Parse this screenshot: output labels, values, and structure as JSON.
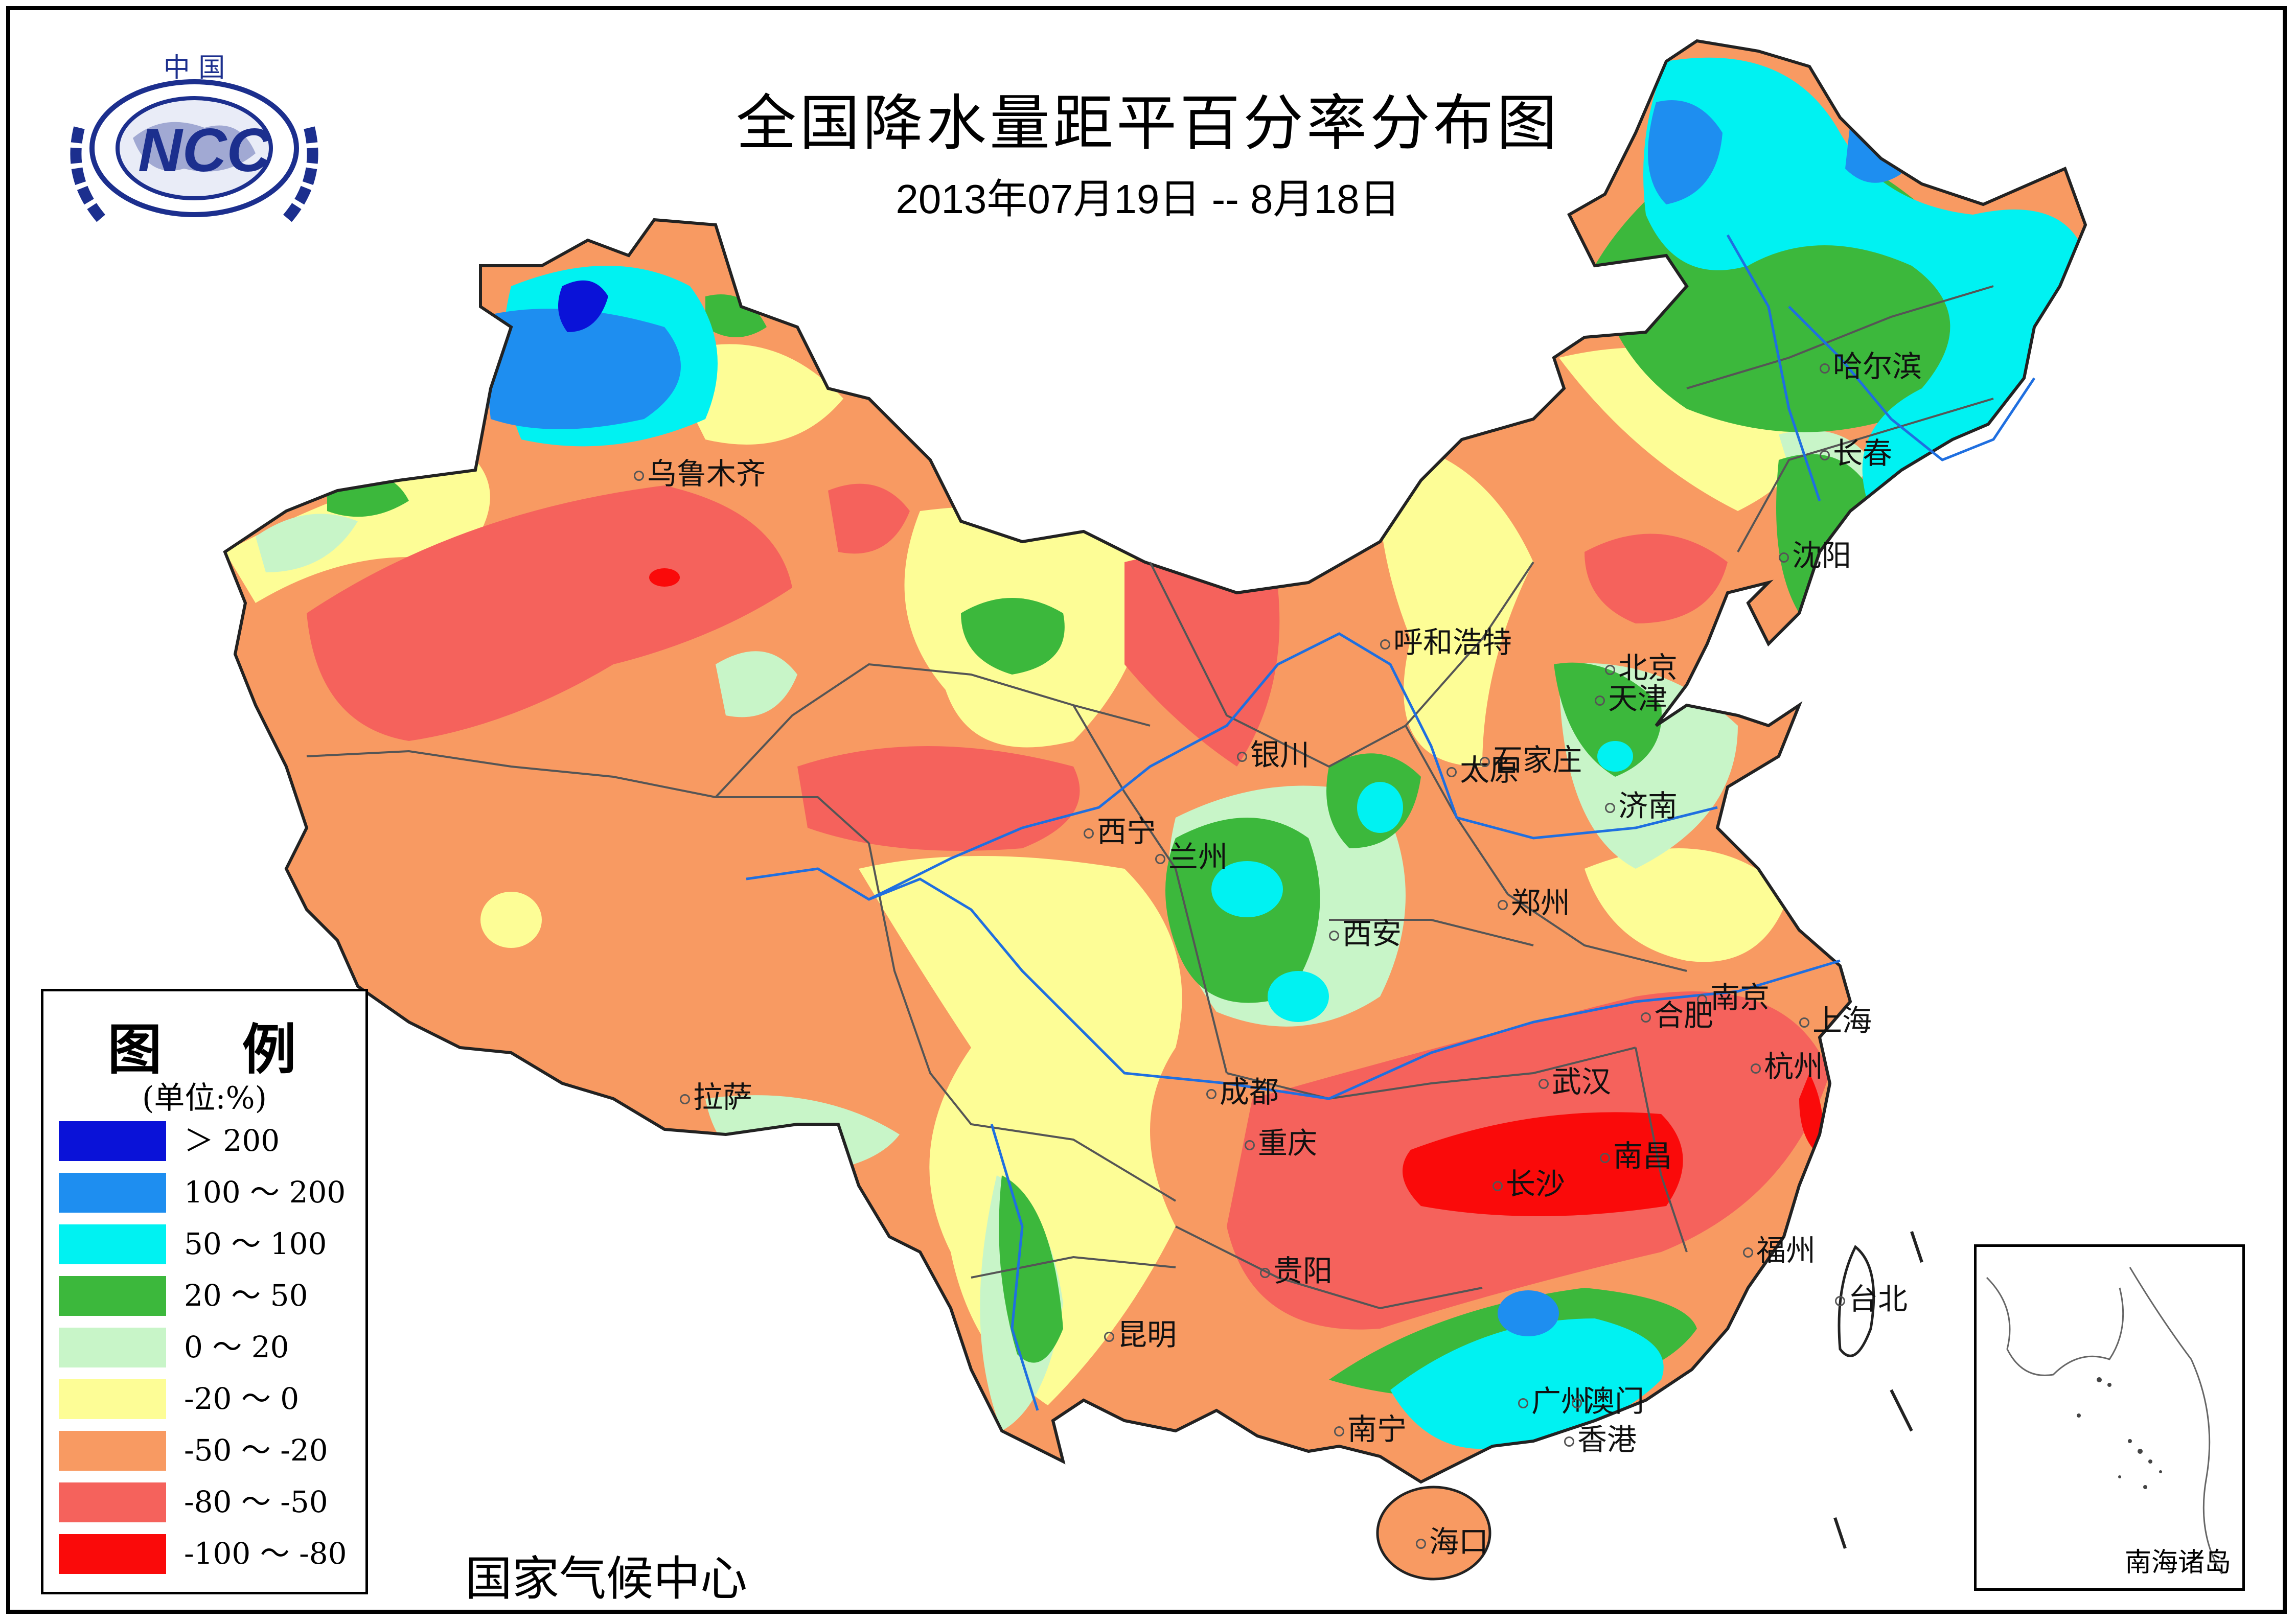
{
  "title": "全国降水量距平百分率分布图",
  "subtitle": "2013年07月19日 -- 8月18日",
  "logo": {
    "top_text": "中  国",
    "acronym": "NCC",
    "color": "#1c2f8e"
  },
  "legend": {
    "title": "图 例",
    "unit": "(单位:%)",
    "items": [
      {
        "label": "＞ 200",
        "color": "#0a12d8"
      },
      {
        "label": "100 ～ 200",
        "color": "#1e8ef0"
      },
      {
        "label": "50 ～ 100",
        "color": "#00f2f2"
      },
      {
        "label": "20 ～ 50",
        "color": "#3cb83c"
      },
      {
        "label": "0 ～ 20",
        "color": "#c8f5c8"
      },
      {
        "label": "-20 ～ 0",
        "color": "#fdfd96"
      },
      {
        "label": "-50 ～ -20",
        "color": "#f89a62"
      },
      {
        "label": "-80 ～ -50",
        "color": "#f5625c"
      },
      {
        "label": "-100 ～ -80",
        "color": "#fa0a0a"
      }
    ]
  },
  "footer": "国家气候中心",
  "inset_label": "南海诸岛",
  "cities": [
    {
      "name": "乌鲁木齐"
    },
    {
      "name": "呼和浩特"
    },
    {
      "name": "哈尔滨"
    },
    {
      "name": "长春"
    },
    {
      "name": "沈阳"
    },
    {
      "name": "北京"
    },
    {
      "name": "天津"
    },
    {
      "name": "银川"
    },
    {
      "name": "太原"
    },
    {
      "name": "石家庄"
    },
    {
      "name": "济南"
    },
    {
      "name": "西宁"
    },
    {
      "name": "兰州"
    },
    {
      "name": "郑州"
    },
    {
      "name": "西安"
    },
    {
      "name": "南京"
    },
    {
      "name": "合肥"
    },
    {
      "name": "上海"
    },
    {
      "name": "拉萨"
    },
    {
      "name": "成都"
    },
    {
      "name": "武汉"
    },
    {
      "name": "杭州"
    },
    {
      "name": "重庆"
    },
    {
      "name": "南昌"
    },
    {
      "name": "长沙"
    },
    {
      "name": "贵阳"
    },
    {
      "name": "福州"
    },
    {
      "name": "台北"
    },
    {
      "name": "昆明"
    },
    {
      "name": "广州"
    },
    {
      "name": "澳门"
    },
    {
      "name": "香港"
    },
    {
      "name": "南宁"
    },
    {
      "name": "海口"
    }
  ]
}
